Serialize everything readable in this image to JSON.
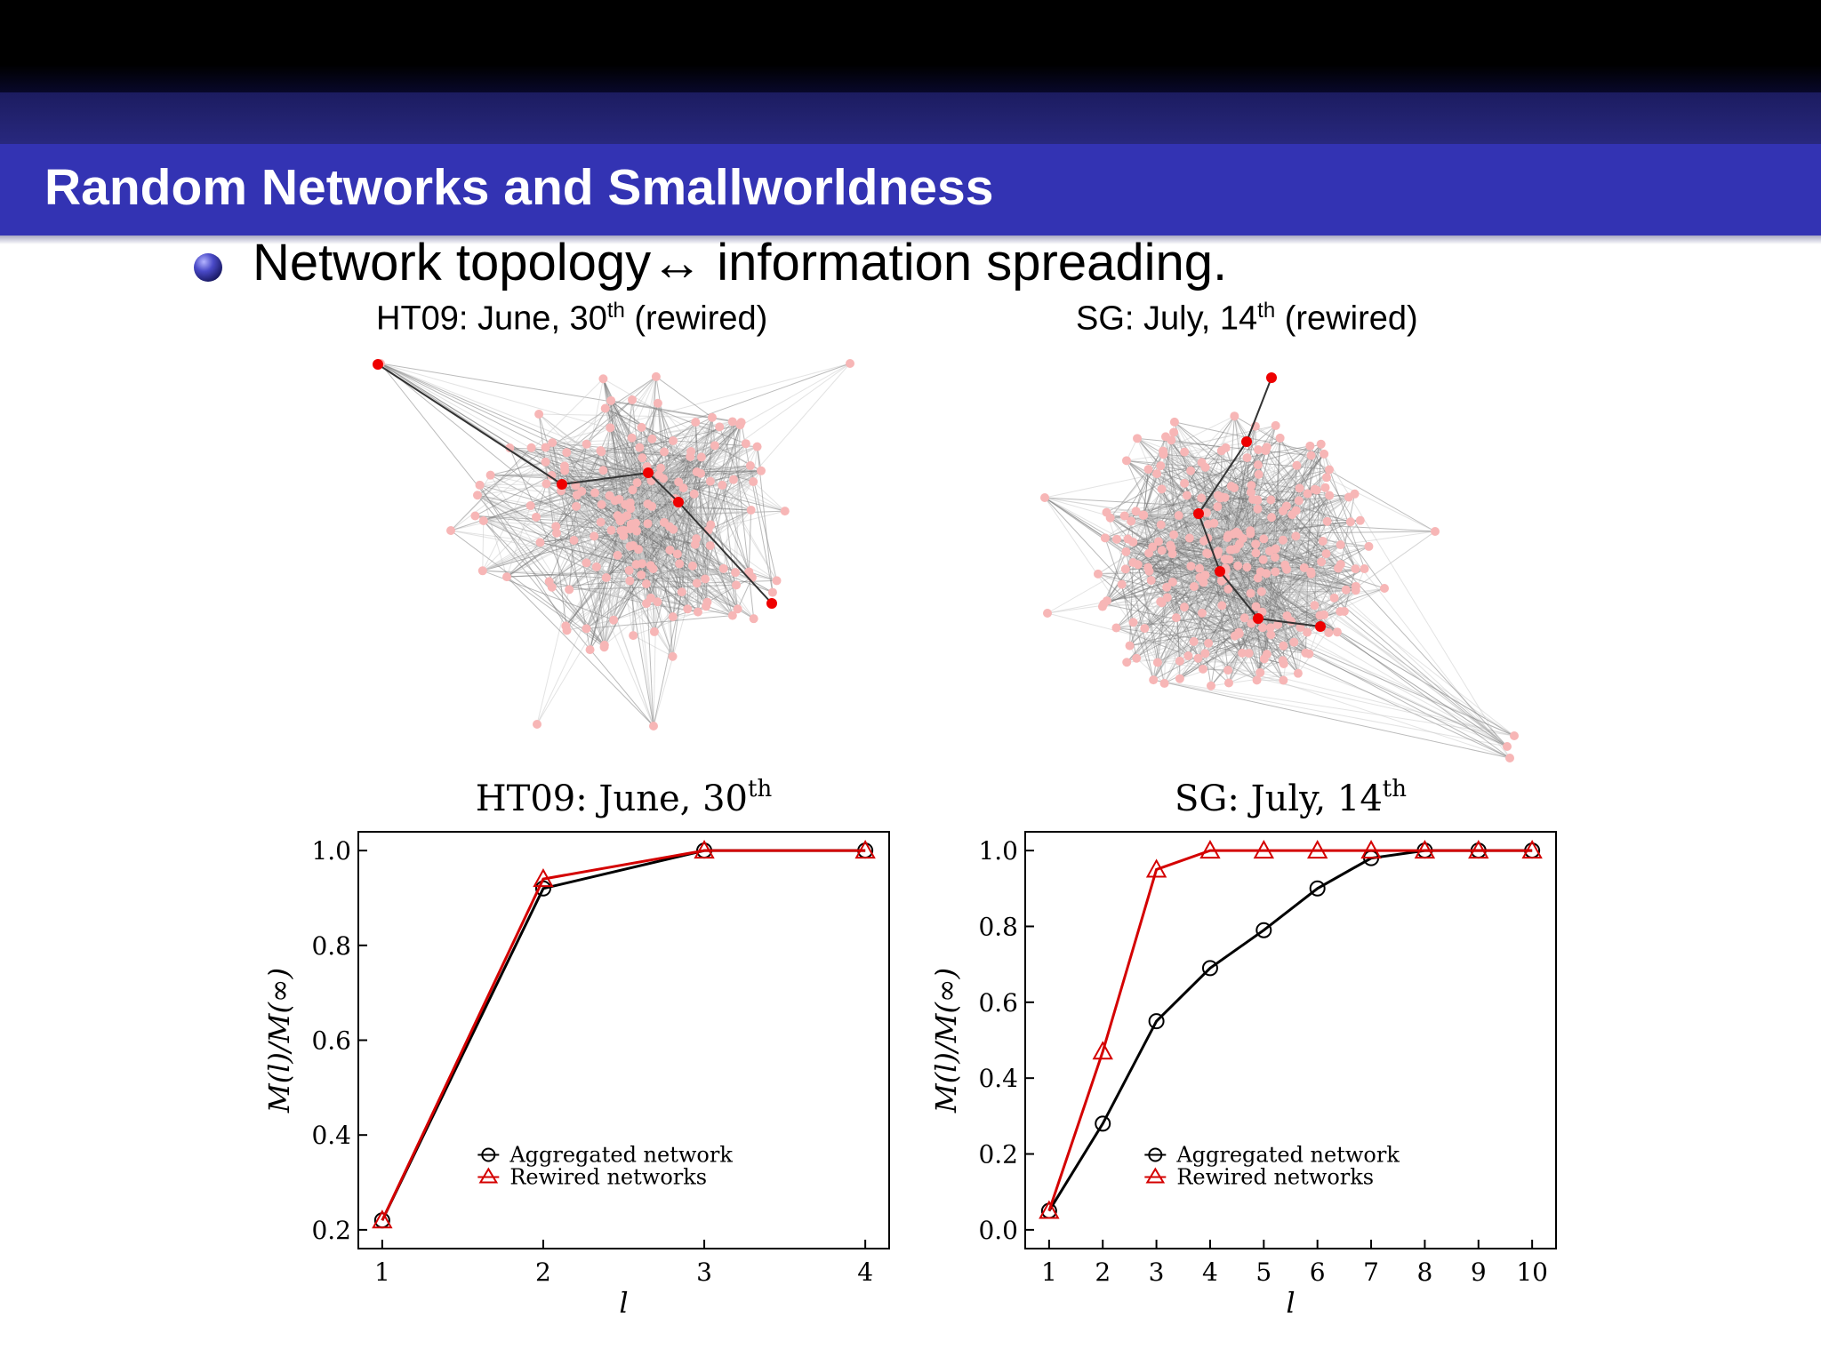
{
  "slide": {
    "title": "Random Networks and Smallworldness",
    "bullet": "Network topology↔ information spreading.",
    "colors": {
      "title_bar": "#3333b3",
      "title_text": "#ffffff"
    }
  },
  "networks": [
    {
      "title_main": "HT09: June, 30",
      "title_sup": "th",
      "title_tail": " (rewired)"
    },
    {
      "title_main": "SG: July, 14",
      "title_sup": "th",
      "title_tail": " (rewired)"
    }
  ],
  "legend": {
    "aggregated": "Aggregated network",
    "rewired": "Rewired networks"
  },
  "chart_data": [
    {
      "type": "line",
      "title": "HT09: June, 30th",
      "xlabel": "l",
      "ylabel": "M(l)/M(∞)",
      "x": [
        1,
        2,
        3,
        4
      ],
      "xticks": [
        "1",
        "2",
        "3",
        "4"
      ],
      "yticks": [
        "0.2",
        "0.4",
        "0.6",
        "0.8",
        "1.0"
      ],
      "ylim": [
        0.2,
        1.0
      ],
      "xlim": [
        1,
        4
      ],
      "legend_position": "lower-right",
      "series": [
        {
          "name": "Aggregated network",
          "marker": "circle",
          "color": "#000000",
          "values": [
            0.22,
            0.92,
            1.0,
            1.0
          ]
        },
        {
          "name": "Rewired networks",
          "marker": "triangle",
          "color": "#d40000",
          "values": [
            0.22,
            0.94,
            1.0,
            1.0
          ]
        }
      ]
    },
    {
      "type": "line",
      "title": "SG: July, 14th",
      "xlabel": "l",
      "ylabel": "M(l)/M(∞)",
      "x": [
        1,
        2,
        3,
        4,
        5,
        6,
        7,
        8,
        9,
        10
      ],
      "xticks": [
        "1",
        "2",
        "3",
        "4",
        "5",
        "6",
        "7",
        "8",
        "9",
        "10"
      ],
      "yticks": [
        "0.0",
        "0.2",
        "0.4",
        "0.6",
        "0.8",
        "1.0"
      ],
      "ylim": [
        0.0,
        1.0
      ],
      "xlim": [
        1,
        10
      ],
      "legend_position": "lower-right",
      "series": [
        {
          "name": "Aggregated network",
          "marker": "circle",
          "color": "#000000",
          "values": [
            0.05,
            0.28,
            0.55,
            0.69,
            0.79,
            0.9,
            0.98,
            1.0,
            1.0,
            1.0
          ]
        },
        {
          "name": "Rewired networks",
          "marker": "triangle",
          "color": "#d40000",
          "values": [
            0.05,
            0.47,
            0.95,
            1.0,
            1.0,
            1.0,
            1.0,
            1.0,
            1.0,
            1.0
          ]
        }
      ]
    }
  ]
}
